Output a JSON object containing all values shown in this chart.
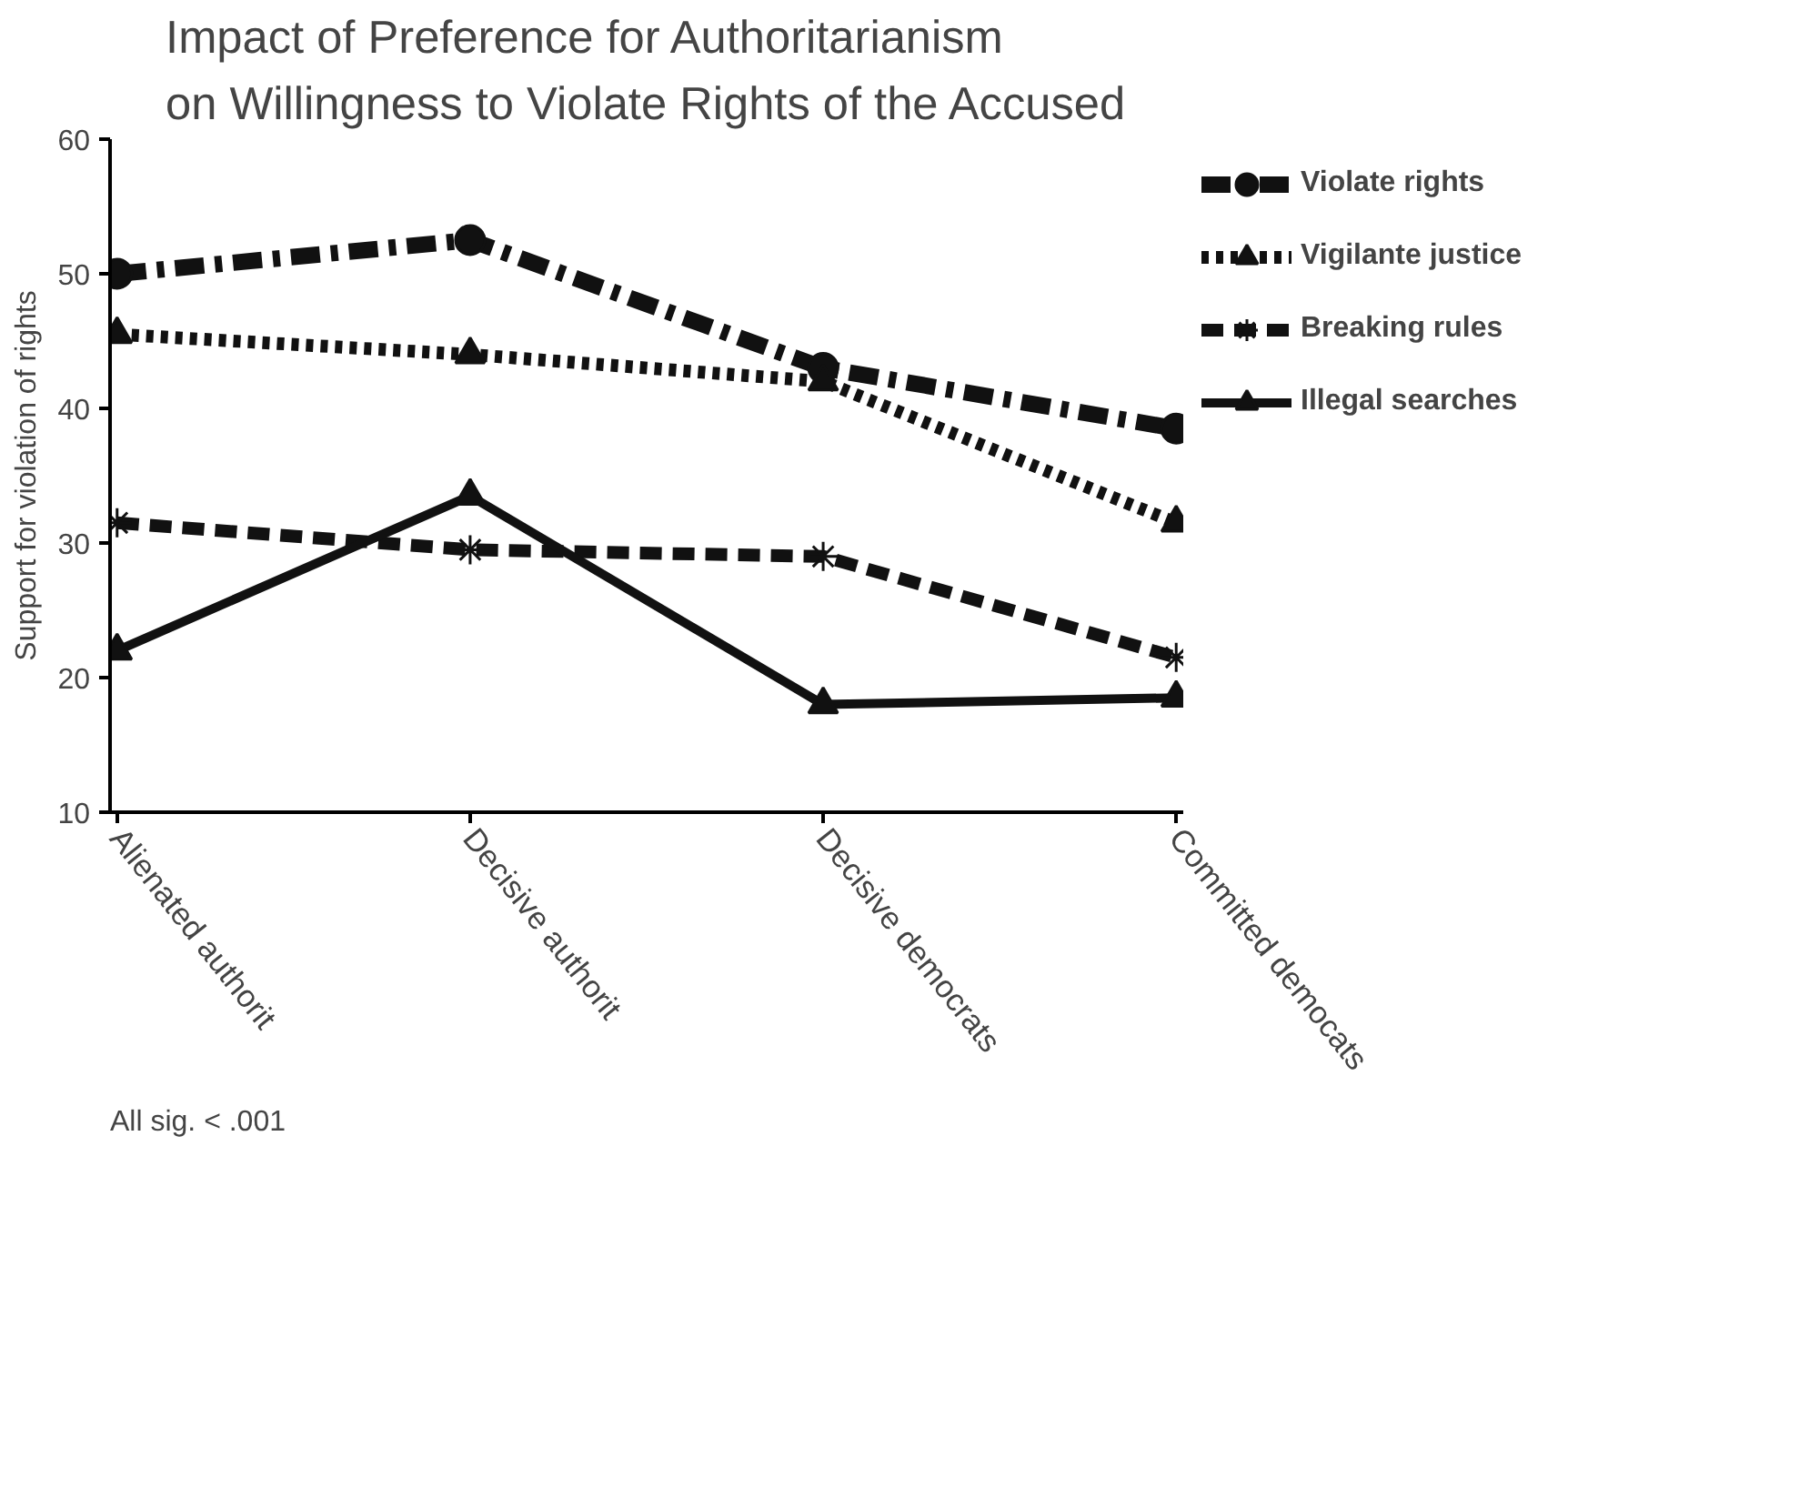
{
  "chart_data": {
    "type": "line",
    "title": "Impact of Preference for Authoritarianism\non Willingness to Violate Rights of the Accused",
    "ylabel": "Support for violation of rights",
    "categories": [
      "Alienated authorit",
      "Decisive authorit",
      "Decisive democrats",
      "Committed democats"
    ],
    "ylim": [
      10,
      60
    ],
    "yticks": [
      10,
      20,
      30,
      40,
      50,
      60
    ],
    "grid": false,
    "legend": "right",
    "annotations": [
      "All sig. < .001"
    ],
    "series": [
      {
        "name": "Violate rights",
        "color": "#111111",
        "values": [
          50,
          52.5,
          43,
          38.5
        ],
        "marker": "circle",
        "line_style": "dashdot"
      },
      {
        "name": "Vigilante justice",
        "color": "#111111",
        "values": [
          45.5,
          44,
          42,
          31.5
        ],
        "marker": "triangle",
        "line_style": "dotted"
      },
      {
        "name": "Breaking rules",
        "color": "#111111",
        "values": [
          31.5,
          29.5,
          29,
          21.5
        ],
        "marker": "cross",
        "line_style": "dashed"
      },
      {
        "name": "Illegal searches",
        "color": "#111111",
        "values": [
          22,
          33.5,
          18,
          18.5
        ],
        "marker": "triangle",
        "line_style": "solid"
      }
    ]
  }
}
